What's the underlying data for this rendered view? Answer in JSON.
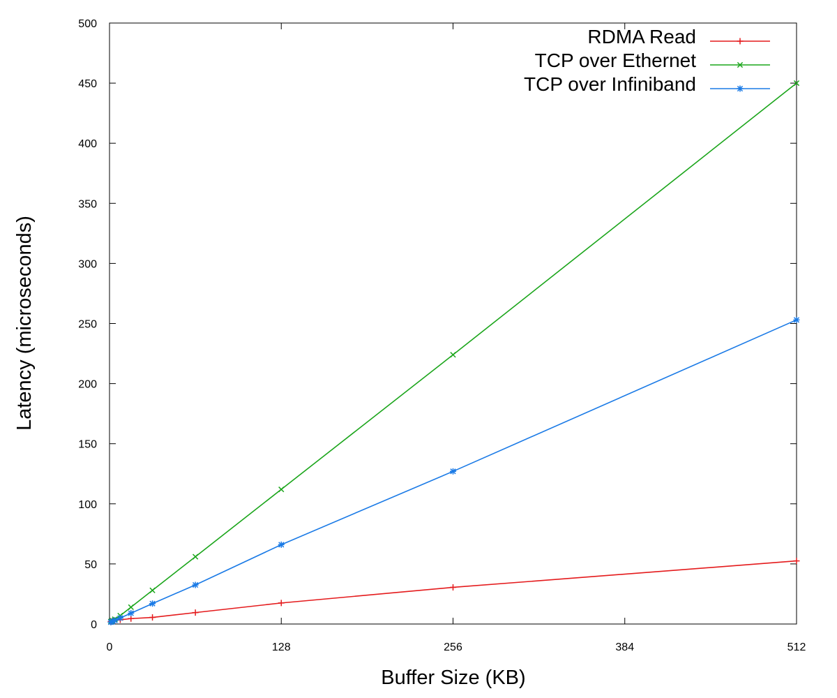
{
  "chart_data": {
    "type": "line",
    "title": "",
    "xlabel": "Buffer Size (KB)",
    "ylabel": "Latency (microseconds)",
    "xlim": [
      0,
      512
    ],
    "ylim": [
      0,
      500
    ],
    "xticks": [
      0,
      128,
      256,
      384,
      512
    ],
    "yticks": [
      0,
      50,
      100,
      150,
      200,
      250,
      300,
      350,
      400,
      450,
      500
    ],
    "grid": false,
    "legend_position": "top-right",
    "series": [
      {
        "name": "RDMA Read",
        "color": "#e41a1c",
        "marker": "plus",
        "x": [
          1,
          2,
          4,
          8,
          16,
          32,
          64,
          128,
          256,
          512
        ],
        "y": [
          2,
          2.5,
          3,
          3.5,
          4.5,
          5.5,
          9.5,
          17.5,
          30.5,
          52.5
        ]
      },
      {
        "name": "TCP over Ethernet",
        "color": "#1aa51a",
        "marker": "x",
        "x": [
          1,
          2,
          4,
          8,
          16,
          32,
          64,
          128,
          256,
          512
        ],
        "y": [
          2,
          3,
          4,
          7,
          14,
          28,
          56,
          112,
          224,
          450
        ]
      },
      {
        "name": "TCP over Infiniband",
        "color": "#1a7ae6",
        "marker": "star",
        "x": [
          1,
          2,
          4,
          8,
          16,
          32,
          64,
          128,
          256,
          512
        ],
        "y": [
          1.5,
          2,
          3,
          5,
          9,
          17,
          32.5,
          66,
          127,
          253
        ]
      }
    ]
  }
}
